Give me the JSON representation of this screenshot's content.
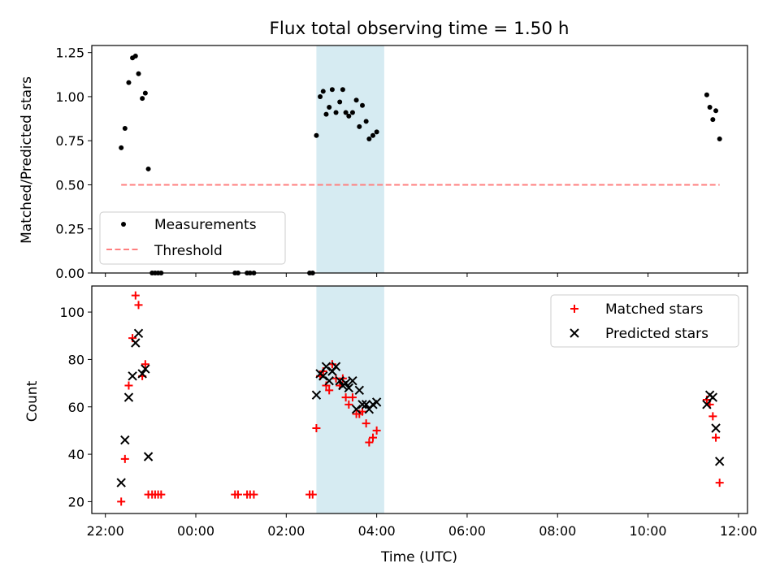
{
  "title": "Flux total observing time = 1.50 h",
  "colors": {
    "measurement": "#000000",
    "threshold": "#ff7f7f",
    "matched": "#ff0000",
    "predicted": "#000000",
    "highlight": "#add8e6"
  },
  "chart_data": [
    {
      "type": "scatter",
      "ylabel": "Matched/Predicted stars",
      "xlabel": "",
      "ylim": [
        0,
        1.29
      ],
      "x_range_hours": [
        21.7,
        36.2
      ],
      "yticks": [
        0.0,
        0.25,
        0.5,
        0.75,
        1.0,
        1.25
      ],
      "ytick_labels": [
        "0.00",
        "0.25",
        "0.50",
        "0.75",
        "1.00",
        "1.25"
      ],
      "highlight_span": [
        "02:40",
        "04:10"
      ],
      "legend": {
        "position": "lower-left",
        "entries": [
          {
            "label": "Measurements",
            "series": "measurements"
          },
          {
            "label": "Threshold",
            "series": "threshold"
          }
        ]
      },
      "series": [
        {
          "name": "Measurements",
          "key": "measurements",
          "points": [
            [
              "22:21",
              0.71
            ],
            [
              "22:26",
              0.82
            ],
            [
              "22:31",
              1.08
            ],
            [
              "22:36",
              1.22
            ],
            [
              "22:40",
              1.23
            ],
            [
              "22:44",
              1.13
            ],
            [
              "22:49",
              0.99
            ],
            [
              "22:53",
              1.02
            ],
            [
              "22:57",
              0.59
            ],
            [
              "23:02",
              0.0
            ],
            [
              "23:06",
              0.0
            ],
            [
              "23:10",
              0.0
            ],
            [
              "23:14",
              0.0
            ],
            [
              "00:52",
              0.0
            ],
            [
              "00:56",
              0.0
            ],
            [
              "01:08",
              0.0
            ],
            [
              "01:12",
              0.0
            ],
            [
              "01:17",
              0.0
            ],
            [
              "02:31",
              0.0
            ],
            [
              "02:35",
              0.0
            ],
            [
              "02:40",
              0.78
            ],
            [
              "02:45",
              1.0
            ],
            [
              "02:49",
              1.03
            ],
            [
              "02:53",
              0.9
            ],
            [
              "02:57",
              0.94
            ],
            [
              "03:01",
              1.04
            ],
            [
              "03:06",
              0.91
            ],
            [
              "03:11",
              0.97
            ],
            [
              "03:15",
              1.04
            ],
            [
              "03:19",
              0.91
            ],
            [
              "03:23",
              0.89
            ],
            [
              "03:28",
              0.91
            ],
            [
              "03:33",
              0.98
            ],
            [
              "03:37",
              0.83
            ],
            [
              "03:41",
              0.95
            ],
            [
              "03:46",
              0.86
            ],
            [
              "03:50",
              0.76
            ],
            [
              "03:55",
              0.78
            ],
            [
              "04:00",
              0.8
            ],
            [
              "11:18",
              1.01
            ],
            [
              "11:22",
              0.94
            ],
            [
              "11:26",
              0.87
            ],
            [
              "11:30",
              0.92
            ],
            [
              "11:35",
              0.76
            ]
          ]
        },
        {
          "name": "Threshold",
          "key": "threshold",
          "line": [
            [
              "22:21",
              0.5
            ],
            [
              "11:35",
              0.5
            ]
          ]
        }
      ]
    },
    {
      "type": "scatter",
      "ylabel": "Count",
      "xlabel": "Time (UTC)",
      "ylim": [
        15,
        111
      ],
      "x_range_hours": [
        21.7,
        36.2
      ],
      "yticks": [
        20,
        40,
        60,
        80,
        100
      ],
      "ytick_labels": [
        "20",
        "40",
        "60",
        "80",
        "100"
      ],
      "xtick_labels": [
        "22:00",
        "00:00",
        "02:00",
        "04:00",
        "06:00",
        "08:00",
        "10:00",
        "12:00"
      ],
      "highlight_span": [
        "02:40",
        "04:10"
      ],
      "legend": {
        "position": "upper-right",
        "entries": [
          {
            "label": "Matched stars",
            "series": "matched"
          },
          {
            "label": "Predicted stars",
            "series": "predicted"
          }
        ]
      },
      "series": [
        {
          "name": "Matched stars",
          "key": "matched",
          "points": [
            [
              "22:21",
              20
            ],
            [
              "22:26",
              38
            ],
            [
              "22:31",
              69
            ],
            [
              "22:36",
              89
            ],
            [
              "22:40",
              107
            ],
            [
              "22:44",
              103
            ],
            [
              "22:49",
              73
            ],
            [
              "22:53",
              78
            ],
            [
              "22:57",
              23
            ],
            [
              "23:02",
              23
            ],
            [
              "23:06",
              23
            ],
            [
              "23:10",
              23
            ],
            [
              "23:14",
              23
            ],
            [
              "00:52",
              23
            ],
            [
              "00:56",
              23
            ],
            [
              "01:08",
              23
            ],
            [
              "01:12",
              23
            ],
            [
              "01:17",
              23
            ],
            [
              "02:31",
              23
            ],
            [
              "02:35",
              23
            ],
            [
              "02:40",
              51
            ],
            [
              "02:45",
              73
            ],
            [
              "02:49",
              75
            ],
            [
              "02:53",
              69
            ],
            [
              "02:57",
              67
            ],
            [
              "03:01",
              78
            ],
            [
              "03:06",
              72
            ],
            [
              "03:11",
              69
            ],
            [
              "03:15",
              72
            ],
            [
              "03:19",
              64
            ],
            [
              "03:23",
              61
            ],
            [
              "03:28",
              64
            ],
            [
              "03:33",
              57
            ],
            [
              "03:37",
              57
            ],
            [
              "03:41",
              58
            ],
            [
              "03:46",
              53
            ],
            [
              "03:50",
              45
            ],
            [
              "03:55",
              47
            ],
            [
              "04:00",
              50
            ],
            [
              "11:18",
              63
            ],
            [
              "11:22",
              61
            ],
            [
              "11:26",
              56
            ],
            [
              "11:30",
              47
            ],
            [
              "11:35",
              28
            ]
          ]
        },
        {
          "name": "Predicted stars",
          "key": "predicted",
          "points": [
            [
              "22:21",
              28
            ],
            [
              "22:26",
              46
            ],
            [
              "22:31",
              64
            ],
            [
              "22:36",
              73
            ],
            [
              "22:40",
              87
            ],
            [
              "22:44",
              91
            ],
            [
              "22:49",
              74
            ],
            [
              "22:53",
              76
            ],
            [
              "22:57",
              39
            ],
            [
              "02:40",
              65
            ],
            [
              "02:45",
              74
            ],
            [
              "02:49",
              73
            ],
            [
              "02:53",
              77
            ],
            [
              "02:57",
              71
            ],
            [
              "03:01",
              75
            ],
            [
              "03:06",
              77
            ],
            [
              "03:11",
              71
            ],
            [
              "03:15",
              69
            ],
            [
              "03:19",
              70
            ],
            [
              "03:23",
              68
            ],
            [
              "03:28",
              71
            ],
            [
              "03:33",
              59
            ],
            [
              "03:37",
              67
            ],
            [
              "03:41",
              61
            ],
            [
              "03:46",
              61
            ],
            [
              "03:50",
              59
            ],
            [
              "03:55",
              61
            ],
            [
              "04:00",
              62
            ],
            [
              "11:18",
              61
            ],
            [
              "11:22",
              65
            ],
            [
              "11:26",
              64
            ],
            [
              "11:30",
              51
            ],
            [
              "11:35",
              37
            ]
          ]
        }
      ]
    }
  ]
}
